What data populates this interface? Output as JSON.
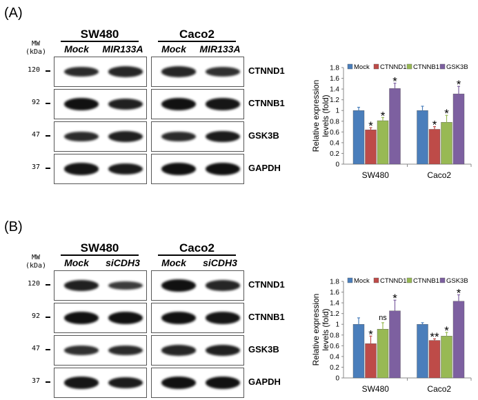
{
  "panels": [
    {
      "label": "(A)",
      "cell_lines": [
        "SW480",
        "Caco2"
      ],
      "conditions": [
        "Mock",
        "MIR133A"
      ],
      "mw_header": [
        "MW",
        "(kDa)"
      ],
      "rows": [
        {
          "mw": "120",
          "protein": "CTNND1",
          "bands": [
            [
              0.75,
              0.8
            ],
            [
              0.8,
              0.7
            ]
          ]
        },
        {
          "mw": "92",
          "protein": "CTNNB1",
          "bands": [
            [
              1.0,
              0.85
            ],
            [
              1.0,
              0.95
            ]
          ]
        },
        {
          "mw": "47",
          "protein": "GSK3B",
          "bands": [
            [
              0.75,
              0.85
            ],
            [
              0.75,
              0.9
            ]
          ]
        },
        {
          "mw": "37",
          "protein": "GAPDH",
          "bands": [
            [
              0.95,
              0.9
            ],
            [
              1.0,
              1.0
            ]
          ]
        }
      ]
    },
    {
      "label": "(B)",
      "cell_lines": [
        "SW480",
        "Caco2"
      ],
      "conditions": [
        "Mock",
        "siCDH3"
      ],
      "mw_header": [
        "MW",
        "(kDa)"
      ],
      "rows": [
        {
          "mw": "120",
          "protein": "CTNND1",
          "bands": [
            [
              0.85,
              0.6
            ],
            [
              1.0,
              0.8
            ]
          ]
        },
        {
          "mw": "92",
          "protein": "CTNNB1",
          "bands": [
            [
              1.0,
              1.0
            ],
            [
              1.0,
              0.95
            ]
          ]
        },
        {
          "mw": "47",
          "protein": "GSK3B",
          "bands": [
            [
              0.7,
              0.75
            ],
            [
              0.8,
              0.85
            ]
          ]
        },
        {
          "mw": "37",
          "protein": "GAPDH",
          "bands": [
            [
              0.95,
              0.9
            ],
            [
              1.0,
              1.0
            ]
          ]
        }
      ]
    }
  ],
  "chart_data": [
    {
      "type": "bar",
      "title": "",
      "ylabel": "Relative expression levels (fold)",
      "ylabel_lines": [
        "Relative expression",
        "levels (fold)"
      ],
      "xlabel": "",
      "categories": [
        "SW480",
        "Caco2"
      ],
      "ylim": [
        0,
        1.8
      ],
      "yticks": [
        "0",
        "0.2",
        "0.4",
        "0.6",
        "0.8",
        "1",
        "1.2",
        "1.4",
        "1.6",
        "1.8"
      ],
      "legend": "top",
      "series": [
        {
          "name": "Mock",
          "color": "#4a7ebb",
          "values": [
            1.0,
            1.0
          ],
          "errors": [
            0.06,
            0.08
          ],
          "sig": [
            "",
            ""
          ]
        },
        {
          "name": "CTNND1",
          "color": "#be4b48",
          "values": [
            0.64,
            0.65
          ],
          "errors": [
            0.04,
            0.05
          ],
          "sig": [
            "*",
            "*"
          ]
        },
        {
          "name": "CTNNB1",
          "color": "#98b954",
          "values": [
            0.81,
            0.78
          ],
          "errors": [
            0.06,
            0.13
          ],
          "sig": [
            "*",
            "*"
          ]
        },
        {
          "name": "GSK3B",
          "color": "#7d60a0",
          "values": [
            1.41,
            1.31
          ],
          "errors": [
            0.1,
            0.14
          ],
          "sig": [
            "*",
            "*"
          ]
        }
      ]
    },
    {
      "type": "bar",
      "title": "",
      "ylabel": "Relative expression levels (fold)",
      "ylabel_lines": [
        "Relative expression",
        "levels (fold)"
      ],
      "xlabel": "",
      "categories": [
        "SW480",
        "Caco2"
      ],
      "ylim": [
        0,
        1.8
      ],
      "yticks": [
        "0",
        "0.2",
        "0.4",
        "0.6",
        "0.8",
        "1",
        "1.2",
        "1.4",
        "1.6",
        "1.8"
      ],
      "legend": "top",
      "series": [
        {
          "name": "Mock",
          "color": "#4a7ebb",
          "values": [
            1.0,
            1.0
          ],
          "errors": [
            0.12,
            0.03
          ],
          "sig": [
            "",
            ""
          ]
        },
        {
          "name": "CTNND1",
          "color": "#be4b48",
          "values": [
            0.64,
            0.7
          ],
          "errors": [
            0.14,
            0.03
          ],
          "sig": [
            "*",
            "**"
          ]
        },
        {
          "name": "CTNNB1",
          "color": "#98b954",
          "values": [
            0.91,
            0.78
          ],
          "errors": [
            0.12,
            0.07
          ],
          "sig": [
            "ns",
            "*"
          ]
        },
        {
          "name": "GSK3B",
          "color": "#7d60a0",
          "values": [
            1.25,
            1.43
          ],
          "errors": [
            0.2,
            0.12
          ],
          "sig": [
            "*",
            "*"
          ]
        }
      ]
    }
  ]
}
